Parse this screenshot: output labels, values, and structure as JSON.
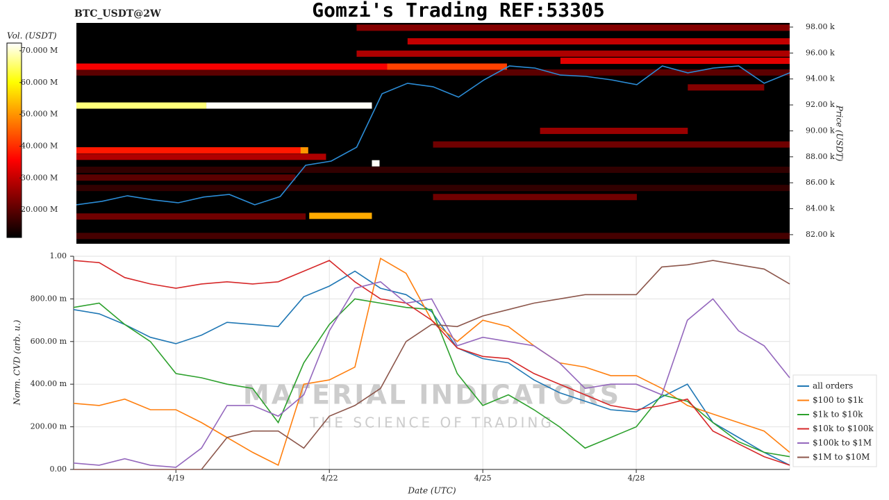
{
  "chart_data": [
    {
      "type": "heatmap",
      "title": "Gomzi's Trading REF:53305",
      "subtitle": "BTC_USDT@2W",
      "y_label": "Price (USDT)",
      "colorbar_label": "Vol. (USDT)",
      "clim": [
        11300000,
        72400000
      ],
      "colorbar_ticks": [
        {
          "value": 20000000,
          "label": "20.000 M"
        },
        {
          "value": 30000000,
          "label": "30.000 M"
        },
        {
          "value": 40000000,
          "label": "40.000 M"
        },
        {
          "value": 50000000,
          "label": "50.000 M"
        },
        {
          "value": 60000000,
          "label": "60.000 M"
        },
        {
          "value": 70000000,
          "label": "70.000 M"
        }
      ],
      "ylim": [
        81300,
        98320
      ],
      "yticks": [
        {
          "value": 82000,
          "label": "82.00 k"
        },
        {
          "value": 84000,
          "label": "84.00 k"
        },
        {
          "value": 86000,
          "label": "86.00 k"
        },
        {
          "value": 88000,
          "label": "88.00 k"
        },
        {
          "value": 90000,
          "label": "90.00 k"
        },
        {
          "value": 92000,
          "label": "92.00 k"
        },
        {
          "value": 94000,
          "label": "94.00 k"
        },
        {
          "value": 96000,
          "label": "96.00 k"
        },
        {
          "value": 98000,
          "label": "98.00 k"
        }
      ],
      "xlim": [
        17,
        31
      ],
      "bands": [
        {
          "price": 81900,
          "x0": 17,
          "x1": 31,
          "volume": 18000000
        },
        {
          "price": 85600,
          "x0": 17,
          "x1": 31,
          "volume": 16000000
        },
        {
          "price": 87000,
          "x0": 17,
          "x1": 31,
          "volume": 16000000
        },
        {
          "price": 94500,
          "x0": 17,
          "x1": 31,
          "volume": 20000000
        },
        {
          "price": 86400,
          "x0": 17,
          "x1": 21.3,
          "volume": 20000000
        },
        {
          "price": 83400,
          "x0": 17,
          "x1": 21.5,
          "volume": 22000000
        },
        {
          "price": 88950,
          "x0": 24,
          "x1": 31,
          "volume": 22000000
        },
        {
          "price": 84900,
          "x0": 24,
          "x1": 28,
          "volume": 22000000
        },
        {
          "price": 93350,
          "x0": 29,
          "x1": 30.5,
          "volume": 24000000
        },
        {
          "price": 97950,
          "x0": 22.5,
          "x1": 31,
          "volume": 24000000
        },
        {
          "price": 96900,
          "x0": 23.5,
          "x1": 31,
          "volume": 30000000
        },
        {
          "price": 95950,
          "x0": 22.5,
          "x1": 31,
          "volume": 28000000
        },
        {
          "price": 95400,
          "x0": 26.5,
          "x1": 31,
          "volume": 33000000
        },
        {
          "price": 90000,
          "x0": 26.1,
          "x1": 29,
          "volume": 26000000
        },
        {
          "price": 88000,
          "x0": 17,
          "x1": 21.9,
          "volume": 28000000
        },
        {
          "price": 88500,
          "x0": 17,
          "x1": 21.5,
          "volume": 38000000
        },
        {
          "price": 88500,
          "x0": 21.4,
          "x1": 21.55,
          "volume": 50000000
        },
        {
          "price": 94950,
          "x0": 17,
          "x1": 25.45,
          "volume": 35000000
        },
        {
          "price": 94950,
          "x0": 23.1,
          "x1": 25.45,
          "volume": 42000000
        },
        {
          "price": 91950,
          "x0": 17,
          "x1": 19.55,
          "volume": 66000000
        },
        {
          "price": 91950,
          "x0": 19.55,
          "x1": 22.8,
          "volume": 72000000
        },
        {
          "price": 83450,
          "x0": 21.57,
          "x1": 22.8,
          "volume": 52000000
        },
        {
          "price": 87500,
          "x0": 22.8,
          "x1": 22.95,
          "volume": 72000000
        }
      ],
      "line": {
        "color": "#2b8cd6",
        "x": [
          17,
          17.5,
          18,
          18.5,
          19,
          19.5,
          20,
          20.5,
          21,
          21.5,
          22,
          22.5,
          23,
          23.5,
          24,
          24.5,
          25,
          25.5,
          26,
          26.5,
          27,
          27.5,
          28,
          28.5,
          29,
          29.5,
          30,
          30.5,
          31
        ],
        "values": [
          84300,
          84570,
          85000,
          84680,
          84460,
          84900,
          85100,
          84300,
          84940,
          87350,
          87670,
          88740,
          92860,
          93670,
          93400,
          92600,
          93930,
          95000,
          94840,
          94300,
          94200,
          93930,
          93560,
          95000,
          94470,
          94840,
          95000,
          93670,
          94470
        ]
      }
    },
    {
      "type": "line",
      "x_label": "Date (UTC)",
      "y_label": "Norm. CVD (arb. u.)",
      "annotations": [
        "MATERIAL INDICATORS",
        "THE SCIENCE OF TRADING"
      ],
      "xlim": [
        17,
        31
      ],
      "xticks": [
        {
          "value": 19,
          "label": "4/19"
        },
        {
          "value": 22,
          "label": "4/22"
        },
        {
          "value": 25,
          "label": "4/25"
        },
        {
          "value": 28,
          "label": "4/28"
        }
      ],
      "ylim": [
        0,
        1
      ],
      "yticks": [
        {
          "value": 0,
          "label": "0.00"
        },
        {
          "value": 0.2,
          "label": "200.00 m"
        },
        {
          "value": 0.4,
          "label": "400.00 m"
        },
        {
          "value": 0.6,
          "label": "600.00 m"
        },
        {
          "value": 0.8,
          "label": "800.00 m"
        },
        {
          "value": 1,
          "label": "1.00"
        }
      ],
      "grid": true,
      "legend": "right",
      "x": [
        17,
        17.5,
        18,
        18.5,
        19,
        19.5,
        20,
        20.5,
        21,
        21.5,
        22,
        22.5,
        23,
        23.5,
        24,
        24.5,
        25,
        25.5,
        26,
        26.5,
        27,
        27.5,
        28,
        28.5,
        29,
        29.5,
        30,
        30.5,
        31
      ],
      "series": [
        {
          "name": "all orders",
          "color": "#1f77b4",
          "values": [
            0.75,
            0.73,
            0.68,
            0.62,
            0.59,
            0.63,
            0.69,
            0.68,
            0.67,
            0.81,
            0.86,
            0.93,
            0.85,
            0.82,
            0.74,
            0.57,
            0.52,
            0.5,
            0.42,
            0.36,
            0.32,
            0.28,
            0.27,
            0.34,
            0.4,
            0.22,
            0.15,
            0.08,
            0.02
          ]
        },
        {
          "name": "$100 to $1k",
          "color": "#ff7f0e",
          "values": [
            0.31,
            0.3,
            0.33,
            0.28,
            0.28,
            0.22,
            0.15,
            0.08,
            0.02,
            0.4,
            0.42,
            0.48,
            0.99,
            0.92,
            0.7,
            0.6,
            0.7,
            0.67,
            0.58,
            0.5,
            0.48,
            0.44,
            0.44,
            0.38,
            0.3,
            0.26,
            0.22,
            0.18,
            0.08
          ]
        },
        {
          "name": "$1k to $10k",
          "color": "#2ca02c",
          "values": [
            0.76,
            0.78,
            0.68,
            0.6,
            0.45,
            0.43,
            0.4,
            0.38,
            0.22,
            0.5,
            0.68,
            0.8,
            0.78,
            0.76,
            0.75,
            0.45,
            0.3,
            0.35,
            0.28,
            0.2,
            0.1,
            0.15,
            0.2,
            0.35,
            0.32,
            0.22,
            0.13,
            0.08,
            0.06
          ]
        },
        {
          "name": "$10k to $100k",
          "color": "#d62728",
          "values": [
            0.98,
            0.97,
            0.9,
            0.87,
            0.85,
            0.87,
            0.88,
            0.87,
            0.88,
            0.93,
            0.98,
            0.88,
            0.8,
            0.78,
            0.7,
            0.57,
            0.53,
            0.52,
            0.45,
            0.4,
            0.35,
            0.3,
            0.28,
            0.3,
            0.33,
            0.18,
            0.12,
            0.06,
            0.02
          ]
        },
        {
          "name": "$100k to $1M",
          "color": "#9467bd",
          "values": [
            0.03,
            0.02,
            0.05,
            0.02,
            0.01,
            0.1,
            0.3,
            0.3,
            0.25,
            0.35,
            0.65,
            0.85,
            0.88,
            0.78,
            0.8,
            0.58,
            0.62,
            0.6,
            0.58,
            0.5,
            0.38,
            0.4,
            0.4,
            0.35,
            0.7,
            0.8,
            0.65,
            0.58,
            0.43
          ]
        },
        {
          "name": "$1M to $10M",
          "color": "#8c564b",
          "values": [
            0,
            0,
            0,
            0,
            0,
            0,
            0.15,
            0.18,
            0.18,
            0.1,
            0.25,
            0.3,
            0.38,
            0.6,
            0.68,
            0.67,
            0.72,
            0.75,
            0.78,
            0.8,
            0.82,
            0.82,
            0.82,
            0.95,
            0.96,
            0.98,
            0.96,
            0.94,
            0.87
          ]
        }
      ]
    }
  ]
}
